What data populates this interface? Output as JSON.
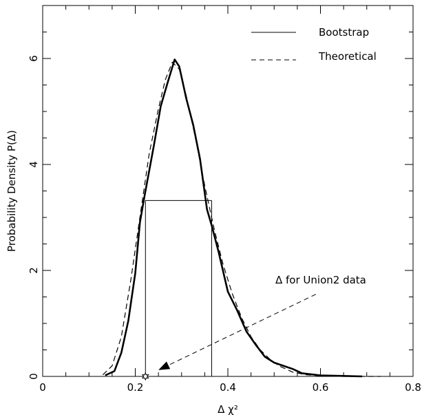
{
  "chart_data": {
    "type": "line",
    "xlabel": "Δ χ²",
    "ylabel": "Probability Density P(Δ)",
    "xlim": [
      0,
      0.8
    ],
    "ylim": [
      0,
      7
    ],
    "x_ticks": [
      "0",
      "0.2",
      "0.4",
      "0.6",
      "0.8"
    ],
    "y_ticks": [
      "0",
      "2",
      "4",
      "6"
    ],
    "grid": false,
    "legend_position": "top-right",
    "series": [
      {
        "name": "Bootstrap",
        "style": "solid",
        "x": [
          0.135,
          0.155,
          0.17,
          0.185,
          0.2,
          0.21,
          0.22,
          0.24,
          0.255,
          0.27,
          0.285,
          0.295,
          0.31,
          0.325,
          0.34,
          0.355,
          0.365,
          0.38,
          0.4,
          0.42,
          0.44,
          0.46,
          0.48,
          0.5,
          0.52,
          0.54,
          0.56,
          0.6,
          0.64,
          0.69
        ],
        "y": [
          0.02,
          0.1,
          0.45,
          1.05,
          1.95,
          2.9,
          3.4,
          4.35,
          5.1,
          5.55,
          5.98,
          5.85,
          5.25,
          4.75,
          4.1,
          3.15,
          2.85,
          2.35,
          1.6,
          1.25,
          0.85,
          0.6,
          0.37,
          0.26,
          0.2,
          0.14,
          0.06,
          0.02,
          0.01,
          0.0
        ]
      },
      {
        "name": "Theoretical",
        "style": "dashed",
        "x": [
          0.13,
          0.15,
          0.17,
          0.19,
          0.21,
          0.23,
          0.25,
          0.265,
          0.28,
          0.295,
          0.31,
          0.33,
          0.35,
          0.37,
          0.39,
          0.41,
          0.43,
          0.45,
          0.47,
          0.49,
          0.51,
          0.54,
          0.57,
          0.6,
          0.65,
          0.73
        ],
        "y": [
          0.03,
          0.2,
          0.75,
          1.8,
          3.0,
          4.2,
          5.05,
          5.6,
          5.93,
          5.8,
          5.3,
          4.5,
          3.6,
          2.8,
          2.1,
          1.55,
          1.1,
          0.75,
          0.5,
          0.33,
          0.2,
          0.08,
          0.03,
          0.01,
          0.0,
          0.0
        ]
      }
    ],
    "interval": {
      "x_low": 0.222,
      "x_high": 0.365,
      "y": 3.32
    },
    "marker": {
      "x": 0.222,
      "y": 0.0
    },
    "annotation": {
      "text": "Δ for Union2 data",
      "arrow_from": [
        0.59,
        1.55
      ],
      "arrow_to": [
        0.25,
        0.12
      ]
    },
    "colors": {
      "lines": "#000000",
      "background": "#ffffff"
    }
  }
}
